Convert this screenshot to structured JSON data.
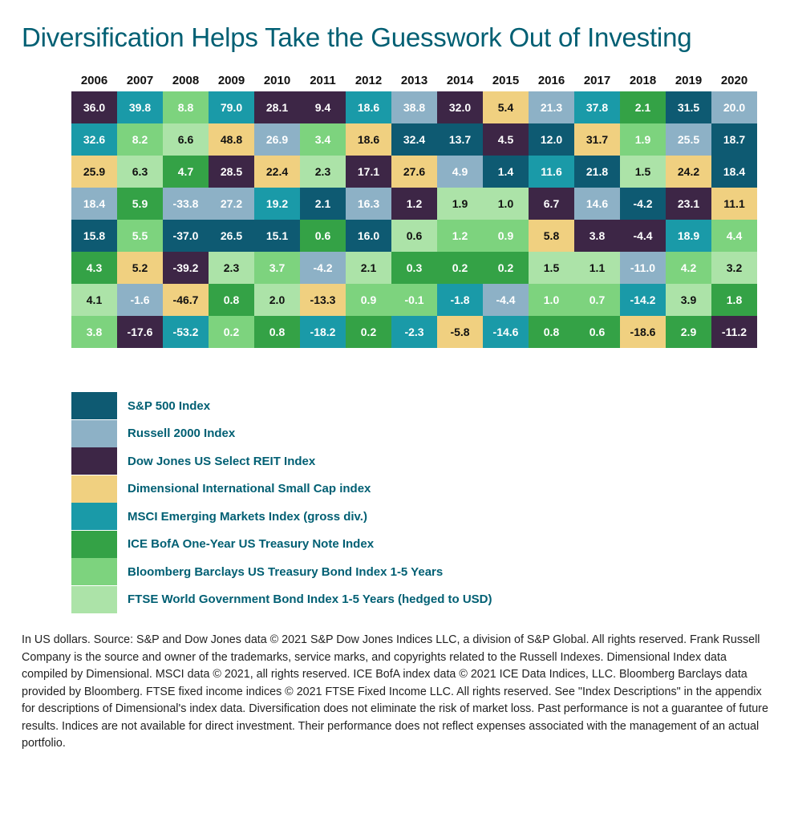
{
  "title": "Diversification Helps Take the Guesswork Out of Investing",
  "chart_data": {
    "type": "table",
    "title": "Diversification Helps Take the Guesswork Out of Investing",
    "years": [
      "2006",
      "2007",
      "2008",
      "2009",
      "2010",
      "2011",
      "2012",
      "2013",
      "2014",
      "2015",
      "2016",
      "2017",
      "2018",
      "2019",
      "2020"
    ],
    "series": [
      {
        "name": "S&P 500 Index",
        "color": "#0e5a72"
      },
      {
        "name": "Russell 2000 Index",
        "color": "#8db1c6"
      },
      {
        "name": "Dow Jones US Select REIT Index",
        "color": "#3d2646"
      },
      {
        "name": "Dimensional International Small Cap index",
        "color": "#f0d080"
      },
      {
        "name": "MSCI Emerging Markets Index (gross div.)",
        "color": "#1a9aa8"
      },
      {
        "name": "ICE BofA One-Year US Treasury Note Index",
        "color": "#34a246"
      },
      {
        "name": "Bloomberg Barclays US Treasury Bond Index 1-5 Years",
        "color": "#7dd37e"
      },
      {
        "name": "FTSE World Government Bond Index 1-5 Years (hedged to USD)",
        "color": "#ace3a8"
      }
    ],
    "columns": [
      [
        [
          "36.0",
          2
        ],
        [
          "32.6",
          4
        ],
        [
          "25.9",
          3
        ],
        [
          "18.4",
          1
        ],
        [
          "15.8",
          0
        ],
        [
          "4.3",
          5
        ],
        [
          "4.1",
          7
        ],
        [
          "3.8",
          6
        ]
      ],
      [
        [
          "39.8",
          4
        ],
        [
          "8.2",
          6
        ],
        [
          "6.3",
          7
        ],
        [
          "5.9",
          5
        ],
        [
          "5.5",
          6
        ],
        [
          "5.2",
          3
        ],
        [
          "-1.6",
          1
        ],
        [
          "-17.6",
          2
        ]
      ],
      [
        [
          "8.8",
          6
        ],
        [
          "6.6",
          7
        ],
        [
          "4.7",
          5
        ],
        [
          "-33.8",
          1
        ],
        [
          "-37.0",
          0
        ],
        [
          "-39.2",
          2
        ],
        [
          "-46.7",
          3
        ],
        [
          "-53.2",
          4
        ]
      ],
      [
        [
          "79.0",
          4
        ],
        [
          "48.8",
          3
        ],
        [
          "28.5",
          2
        ],
        [
          "27.2",
          1
        ],
        [
          "26.5",
          0
        ],
        [
          "2.3",
          7
        ],
        [
          "0.8",
          5
        ],
        [
          "0.2",
          6
        ]
      ],
      [
        [
          "28.1",
          2
        ],
        [
          "26.9",
          1
        ],
        [
          "22.4",
          3
        ],
        [
          "19.2",
          4
        ],
        [
          "15.1",
          0
        ],
        [
          "3.7",
          6
        ],
        [
          "2.0",
          7
        ],
        [
          "0.8",
          5
        ]
      ],
      [
        [
          "9.4",
          2
        ],
        [
          "3.4",
          6
        ],
        [
          "2.3",
          7
        ],
        [
          "2.1",
          0
        ],
        [
          "0.6",
          5
        ],
        [
          "-4.2",
          1
        ],
        [
          "-13.3",
          3
        ],
        [
          "-18.2",
          4
        ]
      ],
      [
        [
          "18.6",
          4
        ],
        [
          "18.6",
          3
        ],
        [
          "17.1",
          2
        ],
        [
          "16.3",
          1
        ],
        [
          "16.0",
          0
        ],
        [
          "2.1",
          7
        ],
        [
          "0.9",
          6
        ],
        [
          "0.2",
          5
        ]
      ],
      [
        [
          "38.8",
          1
        ],
        [
          "32.4",
          0
        ],
        [
          "27.6",
          3
        ],
        [
          "1.2",
          2
        ],
        [
          "0.6",
          7
        ],
        [
          "0.3",
          5
        ],
        [
          "-0.1",
          6
        ],
        [
          "-2.3",
          4
        ]
      ],
      [
        [
          "32.0",
          2
        ],
        [
          "13.7",
          0
        ],
        [
          "4.9",
          1
        ],
        [
          "1.9",
          7
        ],
        [
          "1.2",
          6
        ],
        [
          "0.2",
          5
        ],
        [
          "-1.8",
          4
        ],
        [
          "-5.8",
          3
        ]
      ],
      [
        [
          "5.4",
          3
        ],
        [
          "4.5",
          2
        ],
        [
          "1.4",
          0
        ],
        [
          "1.0",
          7
        ],
        [
          "0.9",
          6
        ],
        [
          "0.2",
          5
        ],
        [
          "-4.4",
          1
        ],
        [
          "-14.6",
          4
        ]
      ],
      [
        [
          "21.3",
          1
        ],
        [
          "12.0",
          0
        ],
        [
          "11.6",
          4
        ],
        [
          "6.7",
          2
        ],
        [
          "5.8",
          3
        ],
        [
          "1.5",
          7
        ],
        [
          "1.0",
          6
        ],
        [
          "0.8",
          5
        ]
      ],
      [
        [
          "37.8",
          4
        ],
        [
          "31.7",
          3
        ],
        [
          "21.8",
          0
        ],
        [
          "14.6",
          1
        ],
        [
          "3.8",
          2
        ],
        [
          "1.1",
          7
        ],
        [
          "0.7",
          6
        ],
        [
          "0.6",
          5
        ]
      ],
      [
        [
          "2.1",
          5
        ],
        [
          "1.9",
          6
        ],
        [
          "1.5",
          7
        ],
        [
          "-4.2",
          0
        ],
        [
          "-4.4",
          2
        ],
        [
          "-11.0",
          1
        ],
        [
          "-14.2",
          4
        ],
        [
          "-18.6",
          3
        ]
      ],
      [
        [
          "31.5",
          0
        ],
        [
          "25.5",
          1
        ],
        [
          "24.2",
          3
        ],
        [
          "23.1",
          2
        ],
        [
          "18.9",
          4
        ],
        [
          "4.2",
          6
        ],
        [
          "3.9",
          7
        ],
        [
          "2.9",
          5
        ]
      ],
      [
        [
          "20.0",
          1
        ],
        [
          "18.7",
          0
        ],
        [
          "18.4",
          0
        ],
        [
          "11.1",
          3
        ],
        [
          "4.4",
          6
        ],
        [
          "3.2",
          7
        ],
        [
          "1.8",
          5
        ],
        [
          "-11.2",
          2
        ]
      ]
    ]
  },
  "footnote": "In US dollars. Source: S&P and Dow Jones data © 2021 S&P Dow Jones Indices LLC, a division of S&P Global. All rights reserved. Frank Russell Company is the source and owner of the trademarks, service marks, and copyrights related to the Russell Indexes. Dimensional Index data compiled by Dimensional. MSCI data © 2021, all rights reserved. ICE BofA index data © 2021 ICE Data Indices, LLC. Bloomberg Barclays data provided by Bloomberg. FTSE fixed income indices © 2021 FTSE Fixed Income LLC. All rights reserved. See \"Index Descriptions\" in the appendix for descriptions of Dimensional's index data. Diversification does not eliminate the risk of market loss. Past performance is not a guarantee of future results. Indices are not available for direct investment. Their performance does not reflect expenses associated with the management of an actual portfolio."
}
